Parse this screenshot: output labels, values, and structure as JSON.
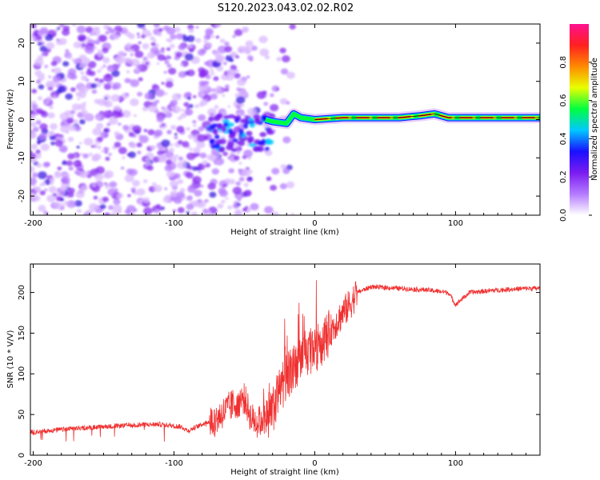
{
  "title": "S120.2023.043.02.02.R02",
  "chart_data": [
    {
      "type": "heatmap",
      "xlabel": "Height of straight line (km)",
      "ylabel": "Frequency (Hz)",
      "xlim": [
        -202,
        160
      ],
      "ylim": [
        -25,
        25
      ],
      "xticks": [
        -200,
        -100,
        0,
        100
      ],
      "yticks": [
        -20,
        -10,
        0,
        10,
        20
      ],
      "colorbar": {
        "label": "Normalized spectral amplitude",
        "range": [
          0,
          1
        ],
        "ticks": [
          0.0,
          0.2,
          0.4,
          0.6,
          0.8
        ],
        "tick_labels": [
          "0.0",
          "0.2",
          "0.4",
          "0.6",
          "0.8"
        ],
        "stops": [
          "#ffffff",
          "#b57bff",
          "#7a1cf0",
          "#1a10ff",
          "#00c8ff",
          "#00ff40",
          "#e8ff00",
          "#ff8a00",
          "#ff2020",
          "#ff1090"
        ]
      },
      "features": {
        "noise_region_x": [
          -202,
          -45
        ],
        "signal_line": [
          {
            "x": -35,
            "y": 0.0
          },
          {
            "x": -30,
            "y": -0.5
          },
          {
            "x": -20,
            "y": -1.0
          },
          {
            "x": -15,
            "y": 1.5
          },
          {
            "x": -10,
            "y": 0.5
          },
          {
            "x": 0,
            "y": 0.0
          },
          {
            "x": 20,
            "y": 0.5
          },
          {
            "x": 40,
            "y": 0.5
          },
          {
            "x": 60,
            "y": 0.5
          },
          {
            "x": 75,
            "y": 1.0
          },
          {
            "x": 85,
            "y": 1.5
          },
          {
            "x": 95,
            "y": 0.5
          },
          {
            "x": 120,
            "y": 0.5
          },
          {
            "x": 160,
            "y": 0.5
          }
        ]
      }
    },
    {
      "type": "line",
      "xlabel": "Height of straight line (km)",
      "ylabel": "SNR (10 * V/V)",
      "xlim": [
        -202,
        160
      ],
      "ylim": [
        0,
        235
      ],
      "xticks": [
        -200,
        -100,
        0,
        100
      ],
      "yticks": [
        0,
        50,
        100,
        150,
        200
      ],
      "series": [
        {
          "color": "#f03030",
          "x": [
            -202,
            -190,
            -170,
            -150,
            -130,
            -110,
            -95,
            -90,
            -80,
            -70,
            -60,
            -50,
            -45,
            -40,
            -30,
            -25,
            -20,
            -10,
            0,
            10,
            20,
            25,
            30,
            40,
            60,
            80,
            95,
            100,
            110,
            130,
            150,
            160
          ],
          "y": [
            28,
            30,
            33,
            35,
            37,
            38,
            35,
            30,
            38,
            45,
            60,
            70,
            45,
            40,
            55,
            80,
            95,
            120,
            130,
            150,
            175,
            185,
            200,
            207,
            205,
            203,
            200,
            185,
            200,
            203,
            205,
            205
          ]
        }
      ]
    }
  ]
}
